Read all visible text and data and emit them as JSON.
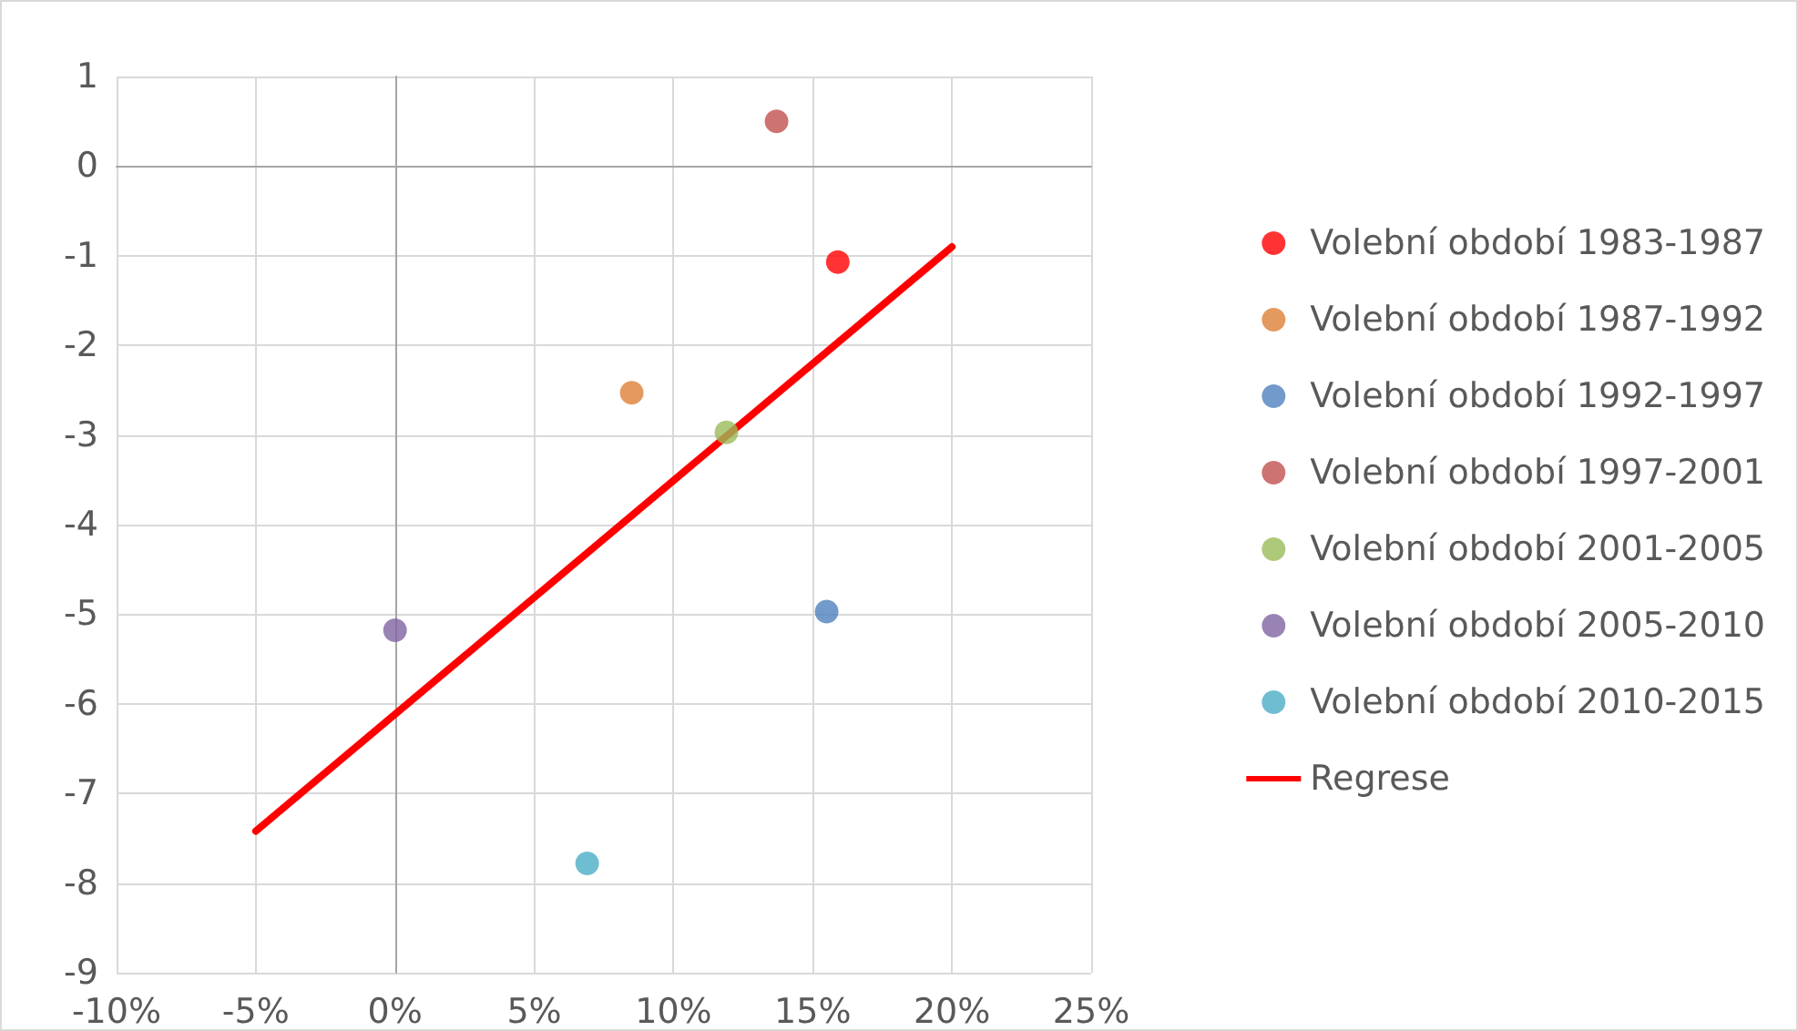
{
  "chart_data": {
    "type": "scatter",
    "marker": "circle",
    "grid": true,
    "legend": "right",
    "xlim": [
      -10,
      25
    ],
    "xticks": [
      {
        "value": -10,
        "label": "-10%"
      },
      {
        "value": -5,
        "label": "-5%"
      },
      {
        "value": 0,
        "label": "0%"
      },
      {
        "value": 5,
        "label": "5%"
      },
      {
        "value": 10,
        "label": "10%"
      },
      {
        "value": 15,
        "label": "15%"
      },
      {
        "value": 20,
        "label": "20%"
      },
      {
        "value": 25,
        "label": "25%"
      }
    ],
    "ylim": [
      -9,
      1
    ],
    "yticks": [
      -9,
      -8,
      -7,
      -6,
      -5,
      -4,
      -3,
      -2,
      -1,
      0,
      1
    ],
    "series": [
      {
        "name": "Volební období 1983-1987",
        "color": "#ff0000",
        "x": [
          15.9
        ],
        "values": [
          -1.07
        ]
      },
      {
        "name": "Volební období 1987-1992",
        "color": "#dd8036",
        "x": [
          8.5
        ],
        "values": [
          -2.53
        ]
      },
      {
        "name": "Volební období 1992-1997",
        "color": "#4f81bd",
        "x": [
          15.5
        ],
        "values": [
          -4.97
        ]
      },
      {
        "name": "Volební období 1997-2001",
        "color": "#c0504d",
        "x": [
          13.7
        ],
        "values": [
          0.5
        ]
      },
      {
        "name": "Volební období 2001-2005",
        "color": "#9bbb59",
        "x": [
          11.9
        ],
        "values": [
          -2.97
        ]
      },
      {
        "name": "Volební období 2005-2010",
        "color": "#8064a2",
        "x": [
          0
        ],
        "values": [
          -5.18
        ]
      },
      {
        "name": "Volební období 2010-2015",
        "color": "#4bacc6",
        "x": [
          6.9
        ],
        "values": [
          -7.78
        ]
      },
      {
        "name": "Regrese",
        "type": "line",
        "color": "#ff0000",
        "marker": "none",
        "line_style": "solid",
        "x": [
          -5,
          20
        ],
        "values": [
          -7.42,
          -0.9
        ]
      }
    ]
  }
}
